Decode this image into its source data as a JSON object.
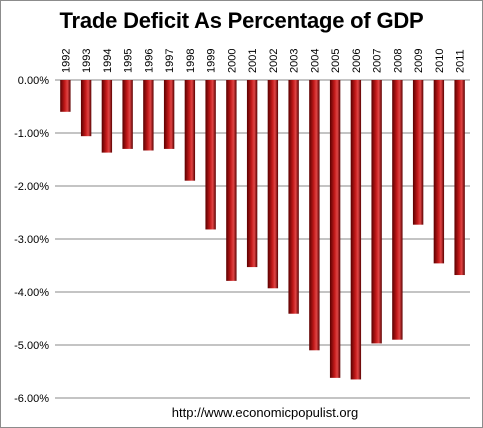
{
  "colors": {
    "bar_dark": "#5a0000",
    "bar_mid": "#c41a1a",
    "bar_light": "#e04545",
    "grid": "#8a8a8a"
  },
  "chart_data": {
    "type": "bar",
    "title": "Trade Deficit As Percentage of GDP",
    "xlabel": "",
    "ylabel": "",
    "categories": [
      "1992",
      "1993",
      "1994",
      "1995",
      "1996",
      "1997",
      "1998",
      "1999",
      "2000",
      "2001",
      "2002",
      "2003",
      "2004",
      "2005",
      "2006",
      "2007",
      "2008",
      "2009",
      "2010",
      "2011"
    ],
    "values": [
      -0.6,
      -1.06,
      -1.37,
      -1.3,
      -1.33,
      -1.3,
      -1.9,
      -2.82,
      -3.79,
      -3.53,
      -3.93,
      -4.41,
      -5.1,
      -5.62,
      -5.65,
      -4.97,
      -4.9,
      -2.73,
      -3.46,
      -3.68
    ],
    "yticks": [
      "0.00%",
      "-1.00%",
      "-2.00%",
      "-3.00%",
      "-4.00%",
      "-5.00%",
      "-6.00%"
    ],
    "ylim": [
      -6,
      0
    ],
    "grid": true,
    "legend": "none",
    "axis_position": "categories-at-top"
  },
  "footer": "http://www.economicpopulist.org"
}
